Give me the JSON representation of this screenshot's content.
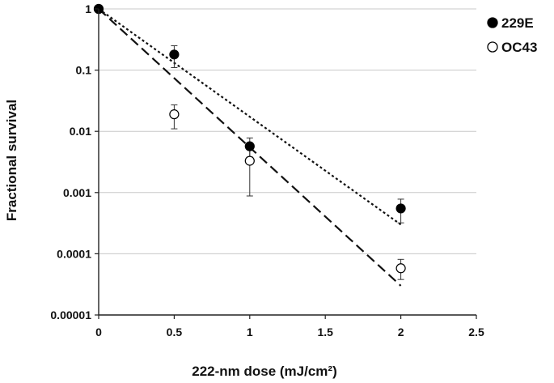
{
  "chart_data": {
    "type": "scatter",
    "xlabel": "222-nm dose (mJ/cm²)",
    "ylabel": "Fractional survival",
    "xlim": [
      0,
      2.5
    ],
    "ylim": [
      1e-05,
      1
    ],
    "y_scale": "log",
    "grid": "horizontal",
    "legend_position": "top-right",
    "x_ticks": [
      "0",
      "0.5",
      "1",
      "1.5",
      "2",
      "2.5"
    ],
    "y_ticks": [
      "0.00001",
      "0.0001",
      "0.001",
      "0.01",
      "0.1",
      "1"
    ],
    "series": [
      {
        "name": "229E",
        "marker": "filled-circle",
        "color": "#000000",
        "points": [
          {
            "x": 0,
            "y": 1,
            "err_low": 1,
            "err_high": 1
          },
          {
            "x": 0.5,
            "y": 0.18,
            "err_low": 0.11,
            "err_high": 0.25
          },
          {
            "x": 1,
            "y": 0.0057,
            "err_low": 0.0038,
            "err_high": 0.0078
          },
          {
            "x": 2,
            "y": 0.00055,
            "err_low": 0.00032,
            "err_high": 0.00078
          }
        ],
        "fit": {
          "style": "dotted",
          "x": [
            0,
            2
          ],
          "y": [
            1,
            0.0003
          ]
        }
      },
      {
        "name": "OC43",
        "marker": "open-circle",
        "color": "#000000",
        "points": [
          {
            "x": 0,
            "y": 1,
            "err_low": 1,
            "err_high": 1
          },
          {
            "x": 0.5,
            "y": 0.019,
            "err_low": 0.011,
            "err_high": 0.027
          },
          {
            "x": 1,
            "y": 0.0033,
            "err_low": 0.00088,
            "err_high": 0.0055
          },
          {
            "x": 2,
            "y": 5.8e-05,
            "err_low": 3.8e-05,
            "err_high": 8.1e-05
          }
        ],
        "fit": {
          "style": "dashed",
          "x": [
            0,
            2
          ],
          "y": [
            1,
            3e-05
          ]
        }
      }
    ]
  }
}
